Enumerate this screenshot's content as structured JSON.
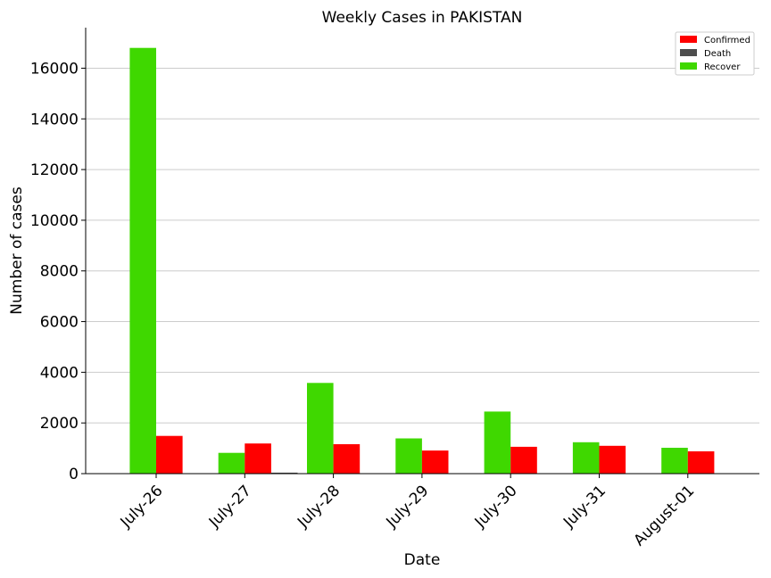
{
  "chart_data": {
    "type": "bar",
    "title": "Weekly Cases in PAKISTAN",
    "xlabel": "Date",
    "ylabel": "Number of cases",
    "categories": [
      "July-26",
      "July-27",
      "July-28",
      "July-29",
      "July-30",
      "July-31",
      "August-01"
    ],
    "series": [
      {
        "name": "Recover",
        "color": "#3fd800",
        "values": [
          16800,
          820,
          3580,
          1390,
          2450,
          1240,
          1020
        ]
      },
      {
        "name": "Confirmed",
        "color": "#ff0000",
        "values": [
          1490,
          1190,
          1160,
          910,
          1060,
          1100,
          880
        ]
      },
      {
        "name": "Death",
        "color": "#4d4d4d",
        "values": [
          0,
          40,
          0,
          0,
          0,
          0,
          0
        ]
      }
    ],
    "legend_order": [
      "Confirmed",
      "Death",
      "Recover"
    ],
    "yticks": [
      0,
      2000,
      4000,
      6000,
      8000,
      10000,
      12000,
      14000,
      16000
    ],
    "ylim": [
      0,
      17600
    ],
    "grid": "y",
    "legend_position": "top-right"
  }
}
